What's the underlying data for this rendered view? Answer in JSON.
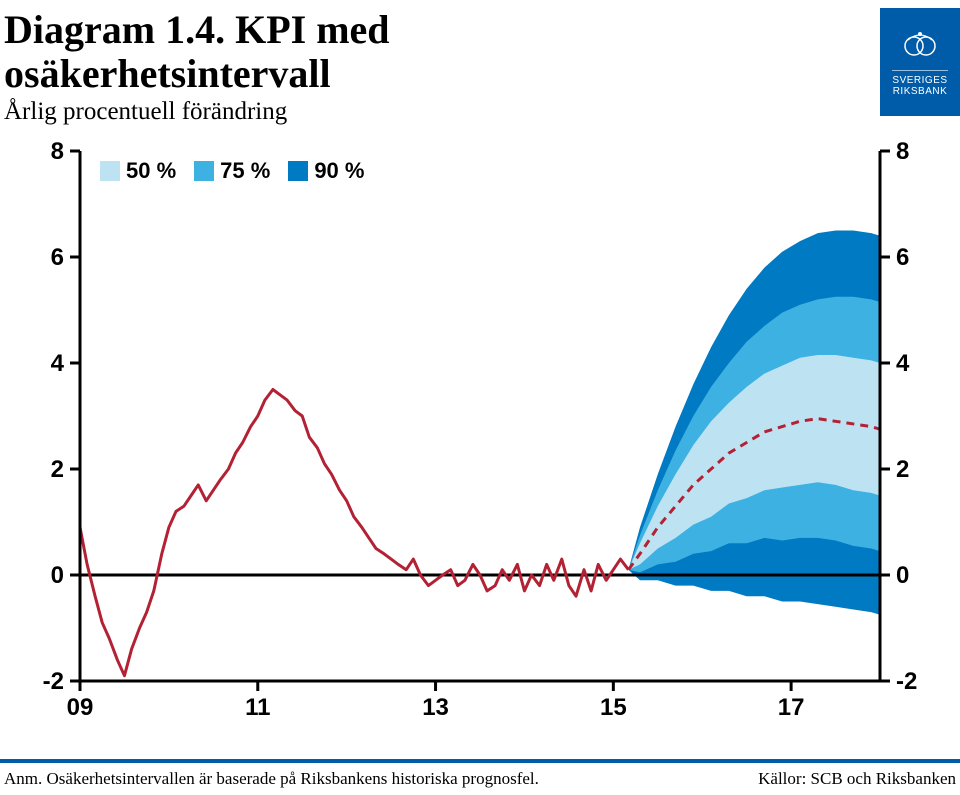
{
  "header": {
    "title_line1": "Diagram 1.4. KPI med",
    "title_line2": "osäkerhetsintervall",
    "subtitle": "Årlig procentuell förändring",
    "logo_text1": "SVERIGES",
    "logo_text2": "RIKSBANK"
  },
  "footer": {
    "note": "Anm. Osäkerhetsintervallen är baserade på Riksbankens historiska prognosfel.",
    "source": "Källor: SCB och Riksbanken"
  },
  "chart": {
    "type": "fan-chart",
    "xlim": [
      2009,
      2018.0
    ],
    "ylim": [
      -2,
      8
    ],
    "yticks": [
      -2,
      0,
      2,
      4,
      6,
      8
    ],
    "xticks": [
      2009,
      2011,
      2013,
      2015,
      2017
    ],
    "xtick_labels": [
      "09",
      "11",
      "13",
      "15",
      "17"
    ],
    "axis_color": "#000000",
    "axis_width": 3,
    "tick_font": "Arial",
    "tick_fontsize": 24,
    "tick_fontweight": "bold",
    "background_color": "#ffffff",
    "legend": {
      "items": [
        {
          "label": "50 %",
          "color": "#bde3f3"
        },
        {
          "label": "75 %",
          "color": "#3eb1e3"
        },
        {
          "label": "90 %",
          "color": "#007ac2"
        }
      ]
    },
    "historical_line": {
      "color": "#b22234",
      "width": 3,
      "x": [
        2009.0,
        2009.08,
        2009.17,
        2009.25,
        2009.33,
        2009.42,
        2009.5,
        2009.58,
        2009.67,
        2009.75,
        2009.83,
        2009.92,
        2010.0,
        2010.08,
        2010.17,
        2010.25,
        2010.33,
        2010.42,
        2010.5,
        2010.58,
        2010.67,
        2010.75,
        2010.83,
        2010.92,
        2011.0,
        2011.08,
        2011.17,
        2011.25,
        2011.33,
        2011.42,
        2011.5,
        2011.58,
        2011.67,
        2011.75,
        2011.83,
        2011.92,
        2012.0,
        2012.08,
        2012.17,
        2012.25,
        2012.33,
        2012.42,
        2012.5,
        2012.58,
        2012.67,
        2012.75,
        2012.83,
        2012.92,
        2013.0,
        2013.08,
        2013.17,
        2013.25,
        2013.33,
        2013.42,
        2013.5,
        2013.58,
        2013.67,
        2013.75,
        2013.83,
        2013.92,
        2014.0,
        2014.08,
        2014.17,
        2014.25,
        2014.33,
        2014.42,
        2014.5,
        2014.58,
        2014.67,
        2014.75,
        2014.83,
        2014.92,
        2015.0,
        2015.08,
        2015.17
      ],
      "y": [
        0.9,
        0.2,
        -0.4,
        -0.9,
        -1.2,
        -1.6,
        -1.9,
        -1.4,
        -1.0,
        -0.7,
        -0.3,
        0.4,
        0.9,
        1.2,
        1.3,
        1.5,
        1.7,
        1.4,
        1.6,
        1.8,
        2.0,
        2.3,
        2.5,
        2.8,
        3.0,
        3.3,
        3.5,
        3.4,
        3.3,
        3.1,
        3.0,
        2.6,
        2.4,
        2.1,
        1.9,
        1.6,
        1.4,
        1.1,
        0.9,
        0.7,
        0.5,
        0.4,
        0.3,
        0.2,
        0.1,
        0.3,
        0.0,
        -0.2,
        -0.1,
        0.0,
        0.1,
        -0.2,
        -0.1,
        0.2,
        0.0,
        -0.3,
        -0.2,
        0.1,
        -0.1,
        0.2,
        -0.3,
        0.0,
        -0.2,
        0.2,
        -0.1,
        0.3,
        -0.2,
        -0.4,
        0.1,
        -0.3,
        0.2,
        -0.1,
        0.1,
        0.3,
        0.1
      ]
    },
    "forecast_line": {
      "color": "#b22234",
      "width": 3,
      "dash": "8,6",
      "x": [
        2015.17,
        2015.3,
        2015.5,
        2015.7,
        2015.9,
        2016.1,
        2016.3,
        2016.5,
        2016.7,
        2016.9,
        2017.1,
        2017.3,
        2017.5,
        2017.7,
        2017.9,
        2018.0
      ],
      "y": [
        0.1,
        0.4,
        0.9,
        1.3,
        1.7,
        2.0,
        2.3,
        2.5,
        2.7,
        2.8,
        2.9,
        2.95,
        2.9,
        2.85,
        2.8,
        2.75
      ]
    },
    "fan_bands": [
      {
        "name": "90",
        "color": "#007ac2",
        "x": [
          2015.17,
          2015.3,
          2015.5,
          2015.7,
          2015.9,
          2016.1,
          2016.3,
          2016.5,
          2016.7,
          2016.9,
          2017.1,
          2017.3,
          2017.5,
          2017.7,
          2017.9,
          2018.0
        ],
        "upper": [
          0.1,
          0.9,
          1.9,
          2.8,
          3.6,
          4.3,
          4.9,
          5.4,
          5.8,
          6.1,
          6.3,
          6.45,
          6.5,
          6.5,
          6.45,
          6.4
        ],
        "lower": [
          0.1,
          -0.1,
          -0.1,
          -0.2,
          -0.2,
          -0.3,
          -0.3,
          -0.4,
          -0.4,
          -0.5,
          -0.5,
          -0.55,
          -0.6,
          -0.65,
          -0.7,
          -0.75
        ]
      },
      {
        "name": "75",
        "color": "#3eb1e3",
        "x": [
          2015.17,
          2015.3,
          2015.5,
          2015.7,
          2015.9,
          2016.1,
          2016.3,
          2016.5,
          2016.7,
          2016.9,
          2017.1,
          2017.3,
          2017.5,
          2017.7,
          2017.9,
          2018.0
        ],
        "upper": [
          0.1,
          0.75,
          1.6,
          2.35,
          3.0,
          3.55,
          4.0,
          4.4,
          4.7,
          4.95,
          5.1,
          5.2,
          5.25,
          5.25,
          5.2,
          5.15
        ],
        "lower": [
          0.1,
          0.05,
          0.2,
          0.25,
          0.4,
          0.45,
          0.6,
          0.6,
          0.7,
          0.65,
          0.7,
          0.7,
          0.65,
          0.55,
          0.5,
          0.45
        ]
      },
      {
        "name": "50",
        "color": "#bde3f3",
        "x": [
          2015.17,
          2015.3,
          2015.5,
          2015.7,
          2015.9,
          2016.1,
          2016.3,
          2016.5,
          2016.7,
          2016.9,
          2017.1,
          2017.3,
          2017.5,
          2017.7,
          2017.9,
          2018.0
        ],
        "upper": [
          0.1,
          0.6,
          1.3,
          1.9,
          2.45,
          2.9,
          3.25,
          3.55,
          3.8,
          3.95,
          4.1,
          4.15,
          4.15,
          4.1,
          4.05,
          4.0
        ],
        "lower": [
          0.1,
          0.2,
          0.5,
          0.7,
          0.95,
          1.1,
          1.35,
          1.45,
          1.6,
          1.65,
          1.7,
          1.75,
          1.7,
          1.6,
          1.55,
          1.5
        ]
      }
    ]
  }
}
